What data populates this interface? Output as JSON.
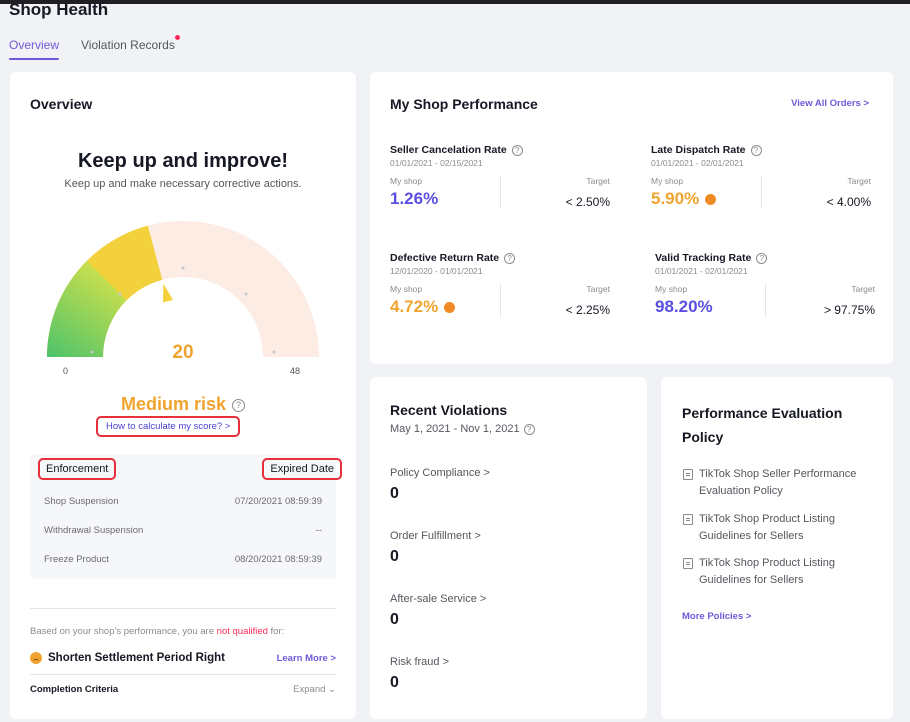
{
  "page": {
    "title": "Shop Health"
  },
  "tabs": [
    {
      "label": "Overview",
      "active": true
    },
    {
      "label": "Violation Records",
      "has_dot": true
    }
  ],
  "overview": {
    "title": "Overview",
    "headline": "Keep up and improve!",
    "subline": "Keep up and make necessary corrective actions.",
    "gauge": {
      "min": "0",
      "max": "48",
      "score": "20",
      "score_value": 20,
      "max_value": 48
    },
    "risk_label": "Medium risk",
    "help_glyph": "?",
    "calc_link": "How to calculate my score? >",
    "enforcement": {
      "col_action": "Enforcement",
      "col_expired": "Expired Date",
      "rows": [
        {
          "action": "Shop Suspension",
          "date": "07/20/2021 08:59:39"
        },
        {
          "action": "Withdrawal Suspension",
          "date": "--"
        },
        {
          "action": "Freeze Product",
          "date": "08/20/2021 08:59:39"
        }
      ]
    },
    "qualification": {
      "prefix": "Based on your shop's performance, you are ",
      "highlight": "not qualified",
      "suffix": " for:"
    },
    "settlement": {
      "label": "Shorten Settlement Period Right",
      "link": "Learn More >"
    },
    "criteria": {
      "label": "Completion Criteria",
      "toggle": "Expand ⌄"
    }
  },
  "performance": {
    "title": "My Shop Performance",
    "view_all": "View All Orders >",
    "metrics": [
      {
        "name": "Seller Cancelation Rate",
        "date": "01/01/2021 - 02/15/2021",
        "my_label": "My shop",
        "my_value": "1.26%",
        "target_label": "Target",
        "target": "< 2.50%",
        "status": "good"
      },
      {
        "name": "Late Dispatch Rate",
        "date": "01/01/2021 - 02/01/2021",
        "my_label": "My shop",
        "my_value": "5.90%",
        "target_label": "Target",
        "target": "< 4.00%",
        "status": "bad"
      },
      {
        "name": "Defective Return Rate",
        "date": "12/01/2020 - 01/01/2021",
        "my_label": "My shop",
        "my_value": "4.72%",
        "target_label": "Target",
        "target": "< 2.25%",
        "status": "bad"
      },
      {
        "name": "Valid Tracking Rate",
        "date": "01/01/2021 - 02/01/2021",
        "my_label": "My shop",
        "my_value": "98.20%",
        "target_label": "Target",
        "target": "> 97.75%",
        "status": "good"
      }
    ],
    "colors": {
      "good": "#5b4fe0",
      "bad": "#f0a430"
    }
  },
  "violations": {
    "title": "Recent Violations",
    "date_range": "May 1, 2021 - Nov 1, 2021",
    "items": [
      {
        "label": "Policy Compliance >",
        "value": "0"
      },
      {
        "label": "Order Fulfillment >",
        "value": "0"
      },
      {
        "label": "After-sale Service >",
        "value": "0"
      },
      {
        "label": "Risk fraud >",
        "value": "0"
      }
    ]
  },
  "policy": {
    "title": "Performance Evaluation Policy",
    "items": [
      "TikTok Shop Seller Performance Evaluation Policy",
      "TikTok Shop Product Listing Guidelines for Sellers",
      "TikTok Shop Product Listing Guidelines for Sellers"
    ],
    "more": "More Policies >"
  }
}
